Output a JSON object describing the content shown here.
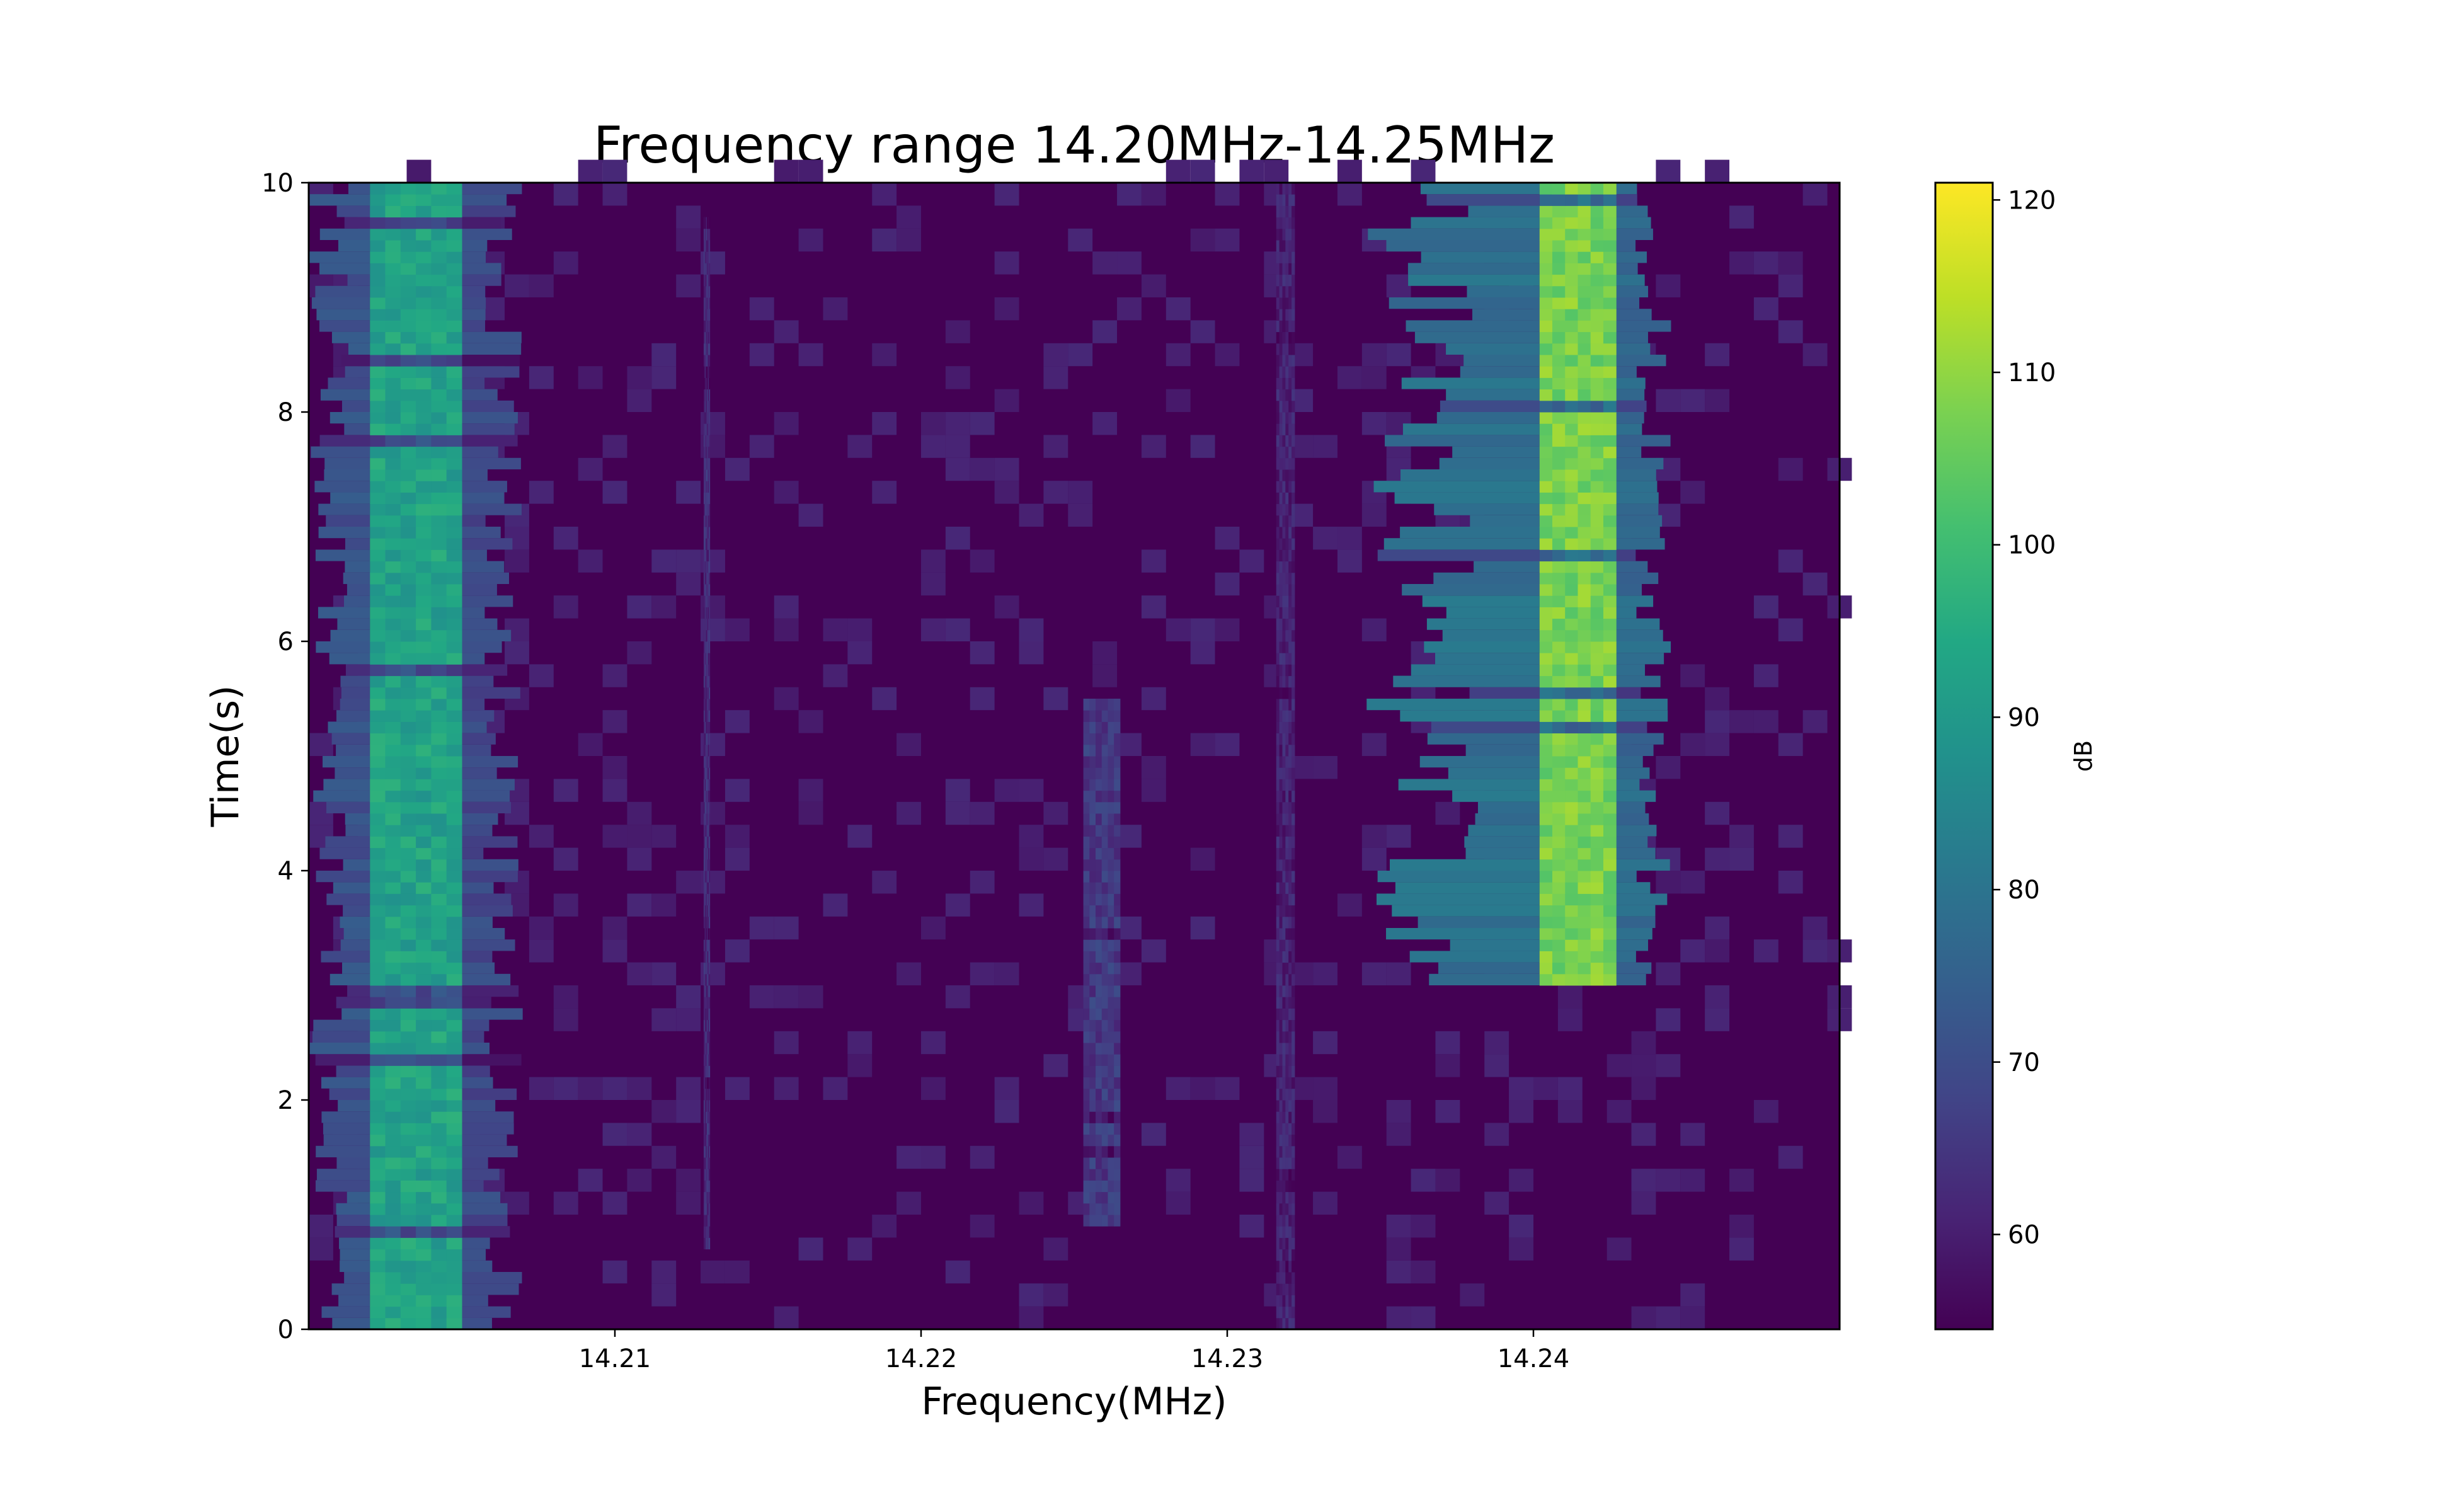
{
  "chart_data": {
    "type": "heatmap",
    "title": "Frequency range 14.20MHz-14.25MHz",
    "xlabel": "Frequency(MHz)",
    "ylabel": "Time(s)",
    "xlim": [
      14.2,
      14.25
    ],
    "ylim": [
      0,
      10
    ],
    "x_ticks": [
      {
        "value": 14.21,
        "label": "14.21"
      },
      {
        "value": 14.22,
        "label": "14.22"
      },
      {
        "value": 14.23,
        "label": "14.23"
      },
      {
        "value": 14.24,
        "label": "14.24"
      }
    ],
    "y_ticks": [
      {
        "value": 0,
        "label": "0"
      },
      {
        "value": 2,
        "label": "2"
      },
      {
        "value": 4,
        "label": "4"
      },
      {
        "value": 6,
        "label": "6"
      },
      {
        "value": 8,
        "label": "8"
      },
      {
        "value": 10,
        "label": "10"
      }
    ],
    "colorbar": {
      "label": "dB",
      "range": [
        54.5,
        121
      ],
      "ticks": [
        {
          "value": 60,
          "label": "60"
        },
        {
          "value": 70,
          "label": "70"
        },
        {
          "value": 80,
          "label": "80"
        },
        {
          "value": 90,
          "label": "90"
        },
        {
          "value": 100,
          "label": "100"
        },
        {
          "value": 110,
          "label": "110"
        },
        {
          "value": 120,
          "label": "120"
        }
      ],
      "colormap": "viridis"
    },
    "background_level_db": 59,
    "signals": [
      {
        "f_start": 14.202,
        "f_end": 14.205,
        "t_start": 0,
        "t_end": 10,
        "peak_db": 97,
        "spread_db": 74,
        "spread_f_start": 14.2,
        "spread_f_end": 14.207
      },
      {
        "f_start": 14.2402,
        "f_end": 14.2427,
        "t_start": 3.0,
        "t_end": 10,
        "peak_db": 112,
        "spread_db": 82,
        "spread_f_start": 14.2345,
        "spread_f_end": 14.2445
      },
      {
        "f_start": 14.2253,
        "f_end": 14.2265,
        "t_start": 0.9,
        "t_end": 5.5,
        "peak_db": 70,
        "spread_db": 62,
        "spread_f_start": 14.2253,
        "spread_f_end": 14.2265
      },
      {
        "f_start": 14.2129,
        "f_end": 14.2131,
        "t_start": 0.7,
        "t_end": 9.7,
        "peak_db": 67,
        "spread_db": 62,
        "spread_f_start": 14.2129,
        "spread_f_end": 14.2131
      },
      {
        "f_start": 14.2316,
        "f_end": 14.2322,
        "t_start": 0,
        "t_end": 10,
        "peak_db": 65,
        "spread_db": 61,
        "spread_f_start": 14.2316,
        "spread_f_end": 14.2322
      }
    ]
  }
}
